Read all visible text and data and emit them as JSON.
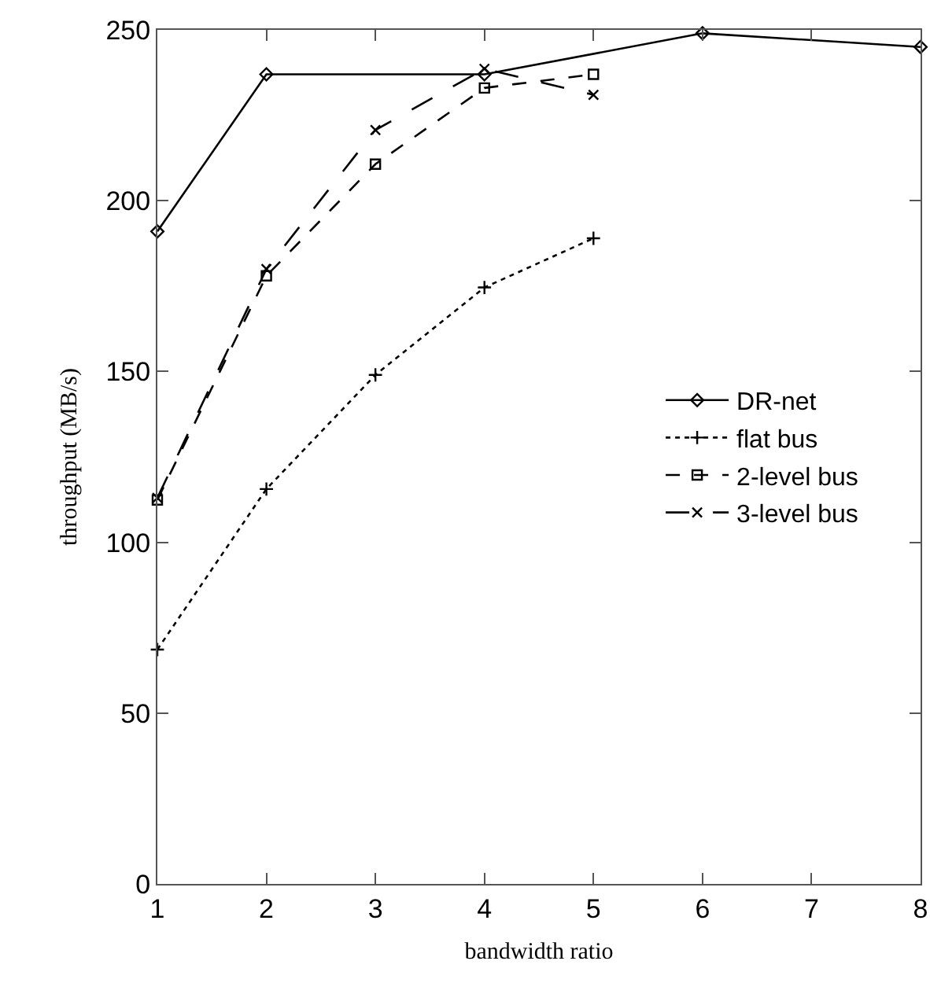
{
  "chart_data": {
    "type": "line",
    "xlabel": "bandwidth ratio",
    "ylabel": "throughput (MB/s)",
    "xlim": [
      1,
      8
    ],
    "xticks": [
      1,
      2,
      3,
      4,
      5,
      6,
      7,
      8
    ],
    "ylim": [
      0,
      250
    ],
    "yticks": [
      0,
      50,
      100,
      150,
      200,
      250
    ],
    "grid": false,
    "legend": "right",
    "series": [
      {
        "name": "DR-net",
        "color": "#000000",
        "x": [
          1,
          2,
          4,
          6,
          8
        ],
        "values": [
          191,
          237,
          237,
          249,
          245
        ],
        "marker": "diamond",
        "line_style": "solid"
      },
      {
        "name": "flat bus",
        "color": "#000000",
        "x": [
          1,
          2,
          3,
          4,
          5
        ],
        "values": [
          68.6,
          115.6,
          149,
          174.6,
          189
        ],
        "marker": "cross",
        "line_style": "dotted"
      },
      {
        "name": "2-level bus",
        "color": "#000000",
        "x": [
          1,
          2,
          3,
          4,
          5
        ],
        "values": [
          112.4,
          178,
          210.7,
          233,
          237
        ],
        "marker": "square",
        "line_style": "dashed"
      },
      {
        "name": "3-level bus",
        "color": "#000000",
        "x": [
          1,
          2,
          3,
          4,
          5
        ],
        "values": [
          113,
          180,
          220.7,
          238.6,
          231
        ],
        "marker": "x",
        "line_style": "longdash"
      }
    ]
  }
}
